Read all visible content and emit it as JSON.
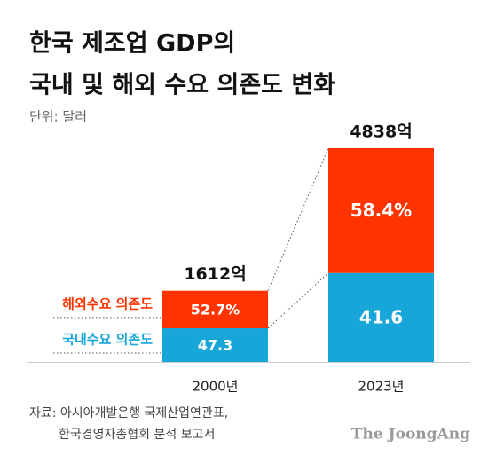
{
  "chart_data": {
    "type": "stacked_bar",
    "title_lines": [
      "한국 제조업 GDP의",
      "국내 및 해외 수요 의존도 변화"
    ],
    "subtitle": "단위: 달러",
    "categories": [
      "2000년",
      "2023년"
    ],
    "totals": {
      "values": [
        1612,
        4838
      ],
      "value_labels": [
        "1612억",
        "4838억"
      ]
    },
    "series": [
      {
        "name": "국내수요 의존도",
        "color": "#18a6d9",
        "values": [
          47.3,
          41.6
        ]
      },
      {
        "name": "해외수요 의존도",
        "color": "#ff3300",
        "values": [
          52.7,
          58.4
        ],
        "value_labels": [
          "52.7%",
          "58.4%"
        ]
      }
    ],
    "source_lines": [
      "자료: 아시아개발은행 국제산업연관표,",
      "한국경영자총협회 분석 보고서"
    ],
    "brand": "The JoongAng"
  }
}
